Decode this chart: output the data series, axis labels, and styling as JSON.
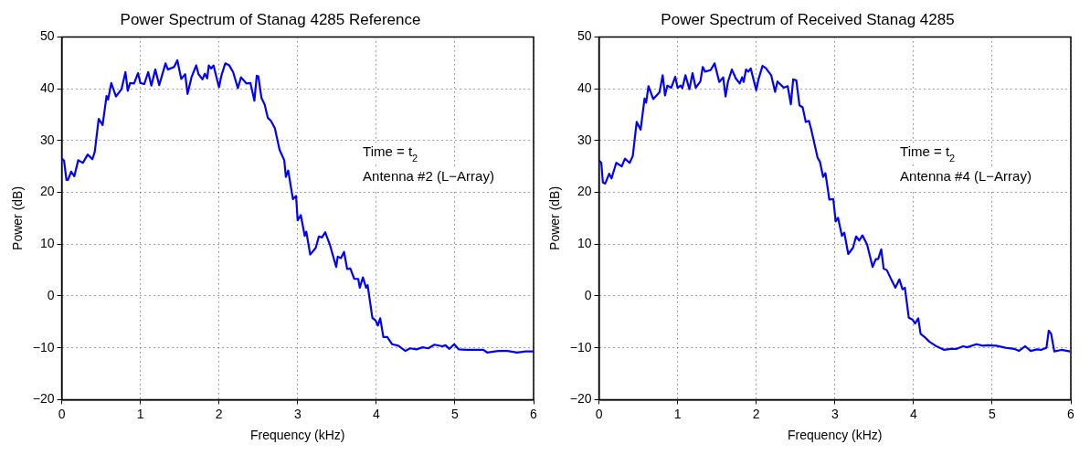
{
  "chart_data": [
    {
      "type": "line",
      "title": "Power Spectrum of Stanag 4285 Reference",
      "xlabel": "Frequency (kHz)",
      "ylabel": "Power (dB)",
      "series": [
        {
          "color": "#0000ff",
          "x": [
            0,
            0.03,
            0.06,
            0.08,
            0.12,
            0.16,
            0.21,
            0.27,
            0.33,
            0.39,
            0.42,
            0.47,
            0.52,
            0.57,
            0.59,
            0.63,
            0.69,
            0.76,
            0.81,
            0.84,
            0.87,
            0.92,
            0.97,
            1.0,
            1.05,
            1.1,
            1.14,
            1.19,
            1.24,
            1.32,
            1.35,
            1.43,
            1.47,
            1.52,
            1.57,
            1.6,
            1.65,
            1.71,
            1.74,
            1.79,
            1.82,
            1.85,
            1.87,
            1.9,
            1.93,
            2.0,
            2.03,
            2.08,
            2.13,
            2.18,
            2.24,
            2.28,
            2.35,
            2.4,
            2.45,
            2.48,
            2.5,
            2.54,
            2.58,
            2.62,
            2.66,
            2.71,
            2.77,
            2.83,
            2.85,
            2.88,
            2.94,
            2.98,
            3.0,
            3.04,
            3.09,
            3.11,
            3.16,
            3.23,
            3.27,
            3.31,
            3.35,
            3.41,
            3.49,
            3.51,
            3.55,
            3.59,
            3.63,
            3.67,
            3.72,
            3.77,
            3.79,
            3.83,
            3.87,
            3.89,
            3.95,
            3.99,
            4.02,
            4.05,
            4.09,
            4.14,
            4.2,
            4.28,
            4.37,
            4.43,
            4.51,
            4.59,
            4.66,
            4.74,
            4.84,
            4.88,
            4.93,
            4.99,
            5.05,
            5.16,
            5.36,
            5.41,
            5.55,
            5.67,
            5.79,
            5.9,
            6.0
          ],
          "values": [
            26.5,
            26.1,
            22.4,
            22.4,
            24.0,
            23.1,
            26.2,
            25.7,
            27.3,
            26.4,
            27.8,
            34.2,
            33.0,
            38.6,
            37.9,
            41.1,
            38.5,
            39.9,
            43.2,
            39.6,
            41.1,
            41.0,
            43.0,
            41.1,
            40.9,
            43.2,
            40.6,
            43.7,
            40.7,
            44.9,
            43.7,
            44.2,
            45.5,
            41.9,
            42.8,
            39.0,
            42.2,
            44.5,
            42.8,
            41.8,
            42.9,
            42.0,
            44.5,
            43.9,
            44.5,
            40.3,
            42.5,
            44.9,
            44.5,
            43.2,
            40.1,
            42.2,
            41.0,
            41.1,
            37.7,
            42.5,
            42.4,
            38.2,
            37.0,
            34.4,
            33.8,
            32.4,
            28.2,
            26.2,
            23.0,
            24.2,
            18.7,
            19.3,
            14.6,
            15.6,
            11.6,
            12.4,
            8.0,
            9.3,
            11.5,
            11.3,
            12.3,
            9.9,
            5.6,
            7.6,
            7.3,
            8.5,
            5.2,
            5.3,
            3.3,
            3.3,
            1.6,
            3.6,
            1.6,
            2.1,
            -4.2,
            -4.7,
            -5.7,
            -4.3,
            -7.9,
            -7.9,
            -9.3,
            -9.6,
            -10.6,
            -10.1,
            -10.3,
            -9.9,
            -10.1,
            -9.4,
            -9.7,
            -9.5,
            -10.2,
            -9.3,
            -10.3,
            -10.4,
            -10.4,
            -10.9,
            -10.6,
            -10.6,
            -10.9,
            -10.7,
            -10.7
          ]
        }
      ],
      "xlim": [
        0,
        6
      ],
      "xticks": [
        0,
        1,
        2,
        3,
        4,
        5,
        6
      ],
      "ylim": [
        -20,
        50
      ],
      "yticks": [
        -20,
        -10,
        0,
        10,
        20,
        30,
        40,
        50
      ],
      "grid": true,
      "marker": "none",
      "annotations": [
        "Time = t$_{2}$",
        "Antenna #2 (L−Array)"
      ]
    },
    {
      "type": "line",
      "title": "Power Spectrum of Received Stanag 4285",
      "xlabel": "Frequency (kHz)",
      "ylabel": "Power (dB)",
      "series": [
        {
          "color": "#0000ff",
          "x": [
            0,
            0.03,
            0.05,
            0.08,
            0.13,
            0.16,
            0.22,
            0.29,
            0.33,
            0.39,
            0.43,
            0.48,
            0.53,
            0.58,
            0.6,
            0.63,
            0.69,
            0.77,
            0.81,
            0.84,
            0.87,
            0.92,
            0.97,
            1.0,
            1.04,
            1.06,
            1.1,
            1.15,
            1.19,
            1.23,
            1.29,
            1.32,
            1.35,
            1.42,
            1.47,
            1.53,
            1.58,
            1.61,
            1.64,
            1.69,
            1.74,
            1.79,
            1.82,
            1.84,
            1.87,
            1.9,
            1.93,
            2.0,
            2.03,
            2.08,
            2.12,
            2.19,
            2.24,
            2.27,
            2.35,
            2.4,
            2.44,
            2.47,
            2.51,
            2.55,
            2.59,
            2.63,
            2.67,
            2.7,
            2.78,
            2.81,
            2.85,
            2.88,
            2.93,
            2.98,
            3.01,
            3.04,
            3.09,
            3.12,
            3.17,
            3.23,
            3.27,
            3.31,
            3.35,
            3.41,
            3.48,
            3.52,
            3.55,
            3.59,
            3.62,
            3.66,
            3.72,
            3.77,
            3.82,
            3.86,
            3.89,
            3.94,
            3.99,
            4.02,
            4.06,
            4.09,
            4.14,
            4.2,
            4.28,
            4.39,
            4.47,
            4.55,
            4.63,
            4.68,
            4.8,
            4.88,
            4.94,
            5.05,
            5.17,
            5.28,
            5.34,
            5.42,
            5.49,
            5.57,
            5.62,
            5.69,
            5.72,
            5.75,
            5.79,
            5.88,
            5.99
          ],
          "values": [
            26.2,
            25.7,
            21.9,
            21.7,
            23.6,
            22.7,
            25.7,
            25.0,
            26.5,
            25.7,
            27.0,
            33.6,
            32.1,
            38.1,
            37.3,
            40.5,
            38.0,
            39.3,
            42.6,
            38.7,
            40.6,
            40.2,
            42.3,
            40.2,
            40.6,
            40.1,
            42.6,
            39.9,
            43.0,
            40.2,
            41.4,
            44.2,
            43.3,
            43.6,
            44.9,
            41.3,
            42.2,
            38.5,
            41.3,
            43.7,
            42.0,
            41.0,
            42.2,
            41.3,
            43.7,
            43.3,
            43.9,
            39.7,
            41.9,
            44.4,
            44.0,
            42.6,
            39.4,
            41.4,
            40.2,
            40.5,
            37.0,
            41.8,
            41.6,
            36.8,
            36.4,
            33.6,
            33.8,
            32.1,
            26.7,
            25.9,
            23.0,
            23.7,
            18.6,
            18.7,
            14.4,
            15.1,
            11.6,
            12.2,
            8.1,
            9.3,
            11.5,
            10.7,
            11.7,
            9.9,
            5.6,
            7.1,
            7.1,
            9.0,
            5.3,
            5.0,
            3.1,
            1.6,
            3.2,
            1.3,
            1.6,
            -4.2,
            -4.6,
            -5.3,
            -4.3,
            -7.3,
            -7.9,
            -8.8,
            -9.6,
            -10.4,
            -10.2,
            -10.2,
            -9.7,
            -9.9,
            -9.3,
            -9.6,
            -9.5,
            -9.6,
            -10.0,
            -10.2,
            -10.6,
            -9.7,
            -10.6,
            -10.3,
            -10.4,
            -10.0,
            -6.7,
            -7.3,
            -10.7,
            -10.4,
            -10.7
          ]
        }
      ],
      "xlim": [
        0,
        6
      ],
      "xticks": [
        0,
        1,
        2,
        3,
        4,
        5,
        6
      ],
      "ylim": [
        -20,
        50
      ],
      "yticks": [
        -20,
        -10,
        0,
        10,
        20,
        30,
        40,
        50
      ],
      "grid": true,
      "marker": "none",
      "annotations": [
        "Time = t$_{2}$",
        "Antenna #4 (L−Array)"
      ]
    }
  ]
}
